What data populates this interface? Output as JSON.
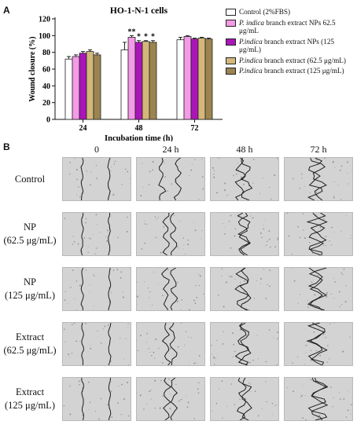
{
  "panel_a_label": "A",
  "panel_b_label": "B",
  "chart_data": {
    "type": "bar",
    "title": "HO-1-N-1 cells",
    "xlabel": "Incubation time (h)",
    "ylabel": "Wound closure (%)",
    "categories": [
      "24",
      "48",
      "72"
    ],
    "ylim": [
      0,
      120
    ],
    "yticks": [
      0,
      20,
      40,
      60,
      80,
      100,
      120
    ],
    "series": [
      {
        "values": [
          72,
          83,
          95
        ],
        "errors": [
          3,
          9,
          3
        ],
        "color": "#ffffff"
      },
      {
        "values": [
          75,
          98,
          99
        ],
        "errors": [
          2,
          2,
          1
        ],
        "color": "#f49ae6"
      },
      {
        "values": [
          79,
          92,
          96
        ],
        "errors": [
          2,
          2,
          1
        ],
        "color": "#aa15b8"
      },
      {
        "values": [
          81,
          93,
          97
        ],
        "errors": [
          2,
          1,
          1
        ],
        "color": "#d4b87a"
      },
      {
        "values": [
          77,
          92,
          96
        ],
        "errors": [
          2,
          2,
          1
        ],
        "color": "#9c8450"
      }
    ],
    "significance": [
      {
        "category": "48",
        "series_index": 1,
        "label": "**"
      },
      {
        "category": "48",
        "series_index": 2,
        "label": "*"
      },
      {
        "category": "48",
        "series_index": 3,
        "label": "*"
      },
      {
        "category": "48",
        "series_index": 4,
        "label": "*"
      }
    ],
    "legend": {
      "placement": "right",
      "items": [
        {
          "color": "#ffffff",
          "name_plain": "Control (2%FBS)"
        },
        {
          "color": "#f49ae6",
          "name_italic": "P. indica",
          "name_plain": " branch extract NPs 62.5 μg/mL"
        },
        {
          "color": "#aa15b8",
          "name_italic": "P.indica",
          "name_plain": " branch extract NPs (125 μg/mL)"
        },
        {
          "color": "#d4b87a",
          "name_italic": "P.indica",
          "name_plain": " branch extract (62.5 μg/mL)"
        },
        {
          "color": "#9c8450",
          "name_italic": "P.indica",
          "name_plain": " branch extract (125 μg/mL)"
        }
      ]
    }
  },
  "panel_b": {
    "columns": [
      "0",
      "24 h",
      "48 h",
      "72 h"
    ],
    "rows": [
      {
        "line1": "Control",
        "line2": ""
      },
      {
        "line1": "NP",
        "line2": "(62.5 μg/mL)"
      },
      {
        "line1": "NP",
        "line2": "(125 μg/mL)"
      },
      {
        "line1": "Extract",
        "line2": "(62.5 μg/mL)"
      },
      {
        "line1": "Extract",
        "line2": "(125 μg/mL)"
      }
    ],
    "gap_fraction": [
      [
        0.4,
        0.24,
        0.1,
        0.04
      ],
      [
        0.4,
        0.1,
        0.04,
        0.02
      ],
      [
        0.4,
        0.12,
        0.05,
        0.02
      ],
      [
        0.4,
        0.1,
        0.04,
        0.02
      ],
      [
        0.4,
        0.1,
        0.06,
        0.02
      ]
    ]
  }
}
